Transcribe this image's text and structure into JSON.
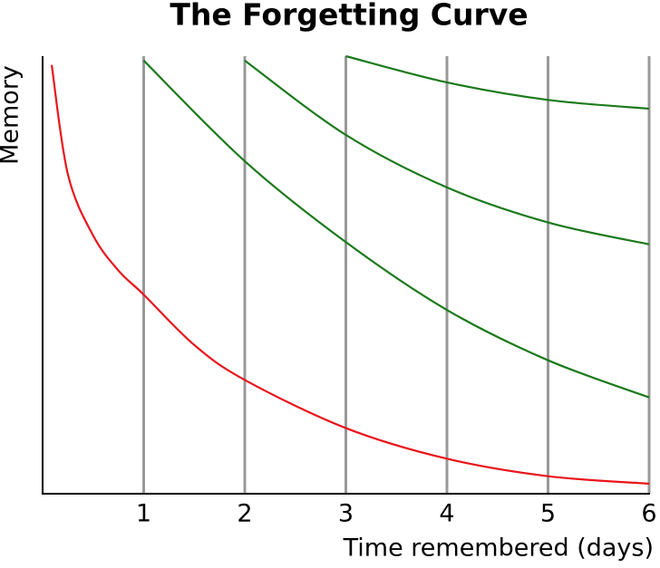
{
  "chart_data": {
    "type": "line",
    "title": "The Forgetting Curve",
    "x_label": "Time remembered (days)",
    "y_label": "Memory",
    "xlim": [
      0,
      6
    ],
    "ylim": [
      0,
      100
    ],
    "xticks": [
      1,
      2,
      3,
      4,
      5,
      6
    ],
    "grid": true,
    "series": [
      {
        "color": "#e8151b",
        "x": [
          0.09,
          0.25,
          0.5,
          0.75,
          1,
          1.5,
          2,
          3,
          4,
          5,
          6
        ],
        "values": [
          98,
          73,
          59,
          51,
          45.5,
          34,
          26,
          15,
          8,
          4,
          2.3
        ]
      },
      {
        "color": "#1b7a1b",
        "x": [
          1,
          2,
          3,
          4,
          5,
          6
        ],
        "values": [
          99,
          76,
          57.5,
          42,
          30.5,
          22
        ]
      },
      {
        "color": "#1b7a1b",
        "x": [
          2,
          3,
          4,
          5,
          6
        ],
        "values": [
          99,
          82,
          70,
          62,
          57
        ]
      },
      {
        "color": "#1b7a1b",
        "x": [
          3,
          4,
          5,
          6
        ],
        "values": [
          100,
          94,
          90,
          88
        ]
      }
    ]
  }
}
